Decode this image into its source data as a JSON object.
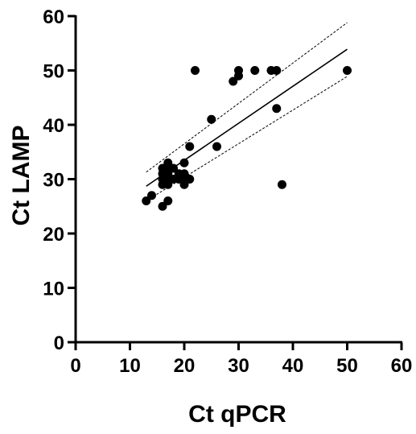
{
  "chart_data": {
    "type": "scatter",
    "title": "",
    "xlabel": "Ct qPCR",
    "ylabel": "Ct LAMP",
    "xlim": [
      0,
      60
    ],
    "ylim": [
      0,
      60
    ],
    "xticks": [
      0,
      10,
      20,
      30,
      40,
      50,
      60
    ],
    "yticks": [
      0,
      10,
      20,
      30,
      40,
      50,
      60
    ],
    "grid": false,
    "legend": "none",
    "colors": {
      "points": "#000000",
      "axis": "#000000",
      "fit": "#000000",
      "ci": "#000000"
    },
    "points": [
      {
        "x": 13,
        "y": 26
      },
      {
        "x": 14,
        "y": 27
      },
      {
        "x": 16,
        "y": 25
      },
      {
        "x": 16,
        "y": 29
      },
      {
        "x": 16,
        "y": 30
      },
      {
        "x": 16,
        "y": 31
      },
      {
        "x": 16,
        "y": 32
      },
      {
        "x": 17,
        "y": 26
      },
      {
        "x": 17,
        "y": 29
      },
      {
        "x": 17,
        "y": 30
      },
      {
        "x": 17,
        "y": 31
      },
      {
        "x": 17,
        "y": 32
      },
      {
        "x": 17,
        "y": 33
      },
      {
        "x": 18,
        "y": 30
      },
      {
        "x": 18,
        "y": 32
      },
      {
        "x": 19,
        "y": 30
      },
      {
        "x": 19,
        "y": 31
      },
      {
        "x": 20,
        "y": 29
      },
      {
        "x": 20,
        "y": 30
      },
      {
        "x": 20,
        "y": 31
      },
      {
        "x": 20,
        "y": 33
      },
      {
        "x": 21,
        "y": 30
      },
      {
        "x": 21,
        "y": 36
      },
      {
        "x": 22,
        "y": 50
      },
      {
        "x": 25,
        "y": 41
      },
      {
        "x": 26,
        "y": 36
      },
      {
        "x": 29,
        "y": 48
      },
      {
        "x": 30,
        "y": 49
      },
      {
        "x": 30,
        "y": 50
      },
      {
        "x": 33,
        "y": 50
      },
      {
        "x": 36,
        "y": 50
      },
      {
        "x": 37,
        "y": 43
      },
      {
        "x": 37,
        "y": 50
      },
      {
        "x": 38,
        "y": 29
      },
      {
        "x": 50,
        "y": 50
      }
    ],
    "fit_line": {
      "type": "linear-regression",
      "x": [
        13,
        50
      ],
      "y": [
        28.7,
        53.9
      ],
      "ci_upper": {
        "x": [
          13,
          50
        ],
        "y": [
          31.3,
          58.8
        ]
      },
      "ci_lower": {
        "x": [
          13,
          50
        ],
        "y": [
          26.0,
          48.9
        ]
      }
    }
  }
}
